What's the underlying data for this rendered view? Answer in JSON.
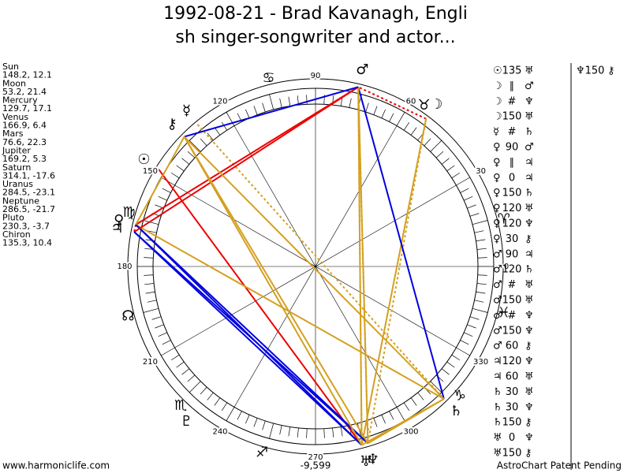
{
  "header": {
    "title_line1": "1992-08-21 - Brad Kavanagh, Engli",
    "title_line2": "sh singer-songwriter and actor..."
  },
  "planets": [
    {
      "name": "Sun",
      "glyph": "☉",
      "position": "148.2, 12.1"
    },
    {
      "name": "Moon",
      "glyph": "☽",
      "position": "53.2, 21.4"
    },
    {
      "name": "Mercury",
      "glyph": "☿",
      "position": "129.7, 17.1"
    },
    {
      "name": "Venus",
      "glyph": "♀",
      "position": "166.9, 6.4"
    },
    {
      "name": "Mars",
      "glyph": "♂",
      "position": "76.6, 22.3"
    },
    {
      "name": "Jupiter",
      "glyph": "♃",
      "position": "169.2, 5.3"
    },
    {
      "name": "Saturn",
      "glyph": "♄",
      "position": "314.1, -17.6"
    },
    {
      "name": "Uranus",
      "glyph": "♅",
      "position": "284.5, -23.1"
    },
    {
      "name": "Neptune",
      "glyph": "♆",
      "position": "286.5, -21.7"
    },
    {
      "name": "Pluto",
      "glyph": "♇",
      "position": "230.3, -3.7"
    },
    {
      "name": "Chiron",
      "glyph": "⚷",
      "position": "135.3, 10.4"
    }
  ],
  "aspects": [
    {
      "from": "☉",
      "aspect": "135",
      "to": "♅"
    },
    {
      "from": "☽",
      "aspect": "∥",
      "to": "♂"
    },
    {
      "from": "☽",
      "aspect": "#",
      "to": "♆"
    },
    {
      "from": "☽",
      "aspect": "150",
      "to": "♅"
    },
    {
      "from": "☿",
      "aspect": "#",
      "to": "♄"
    },
    {
      "from": "♀",
      "aspect": "90",
      "to": "♂"
    },
    {
      "from": "♀",
      "aspect": "∥",
      "to": "♃"
    },
    {
      "from": "♀",
      "aspect": "0",
      "to": "♃"
    },
    {
      "from": "♀",
      "aspect": "150",
      "to": "♄"
    },
    {
      "from": "♀",
      "aspect": "120",
      "to": "♅"
    },
    {
      "from": "♀",
      "aspect": "120",
      "to": "♆"
    },
    {
      "from": "♀",
      "aspect": "30",
      "to": "⚷"
    },
    {
      "from": "♂",
      "aspect": "90",
      "to": "♃"
    },
    {
      "from": "♂",
      "aspect": "120",
      "to": "♄"
    },
    {
      "from": "♂",
      "aspect": "#",
      "to": "♅"
    },
    {
      "from": "♂",
      "aspect": "150",
      "to": "♅"
    },
    {
      "from": "♂",
      "aspect": "#",
      "to": "♆"
    },
    {
      "from": "♂",
      "aspect": "150",
      "to": "♆"
    },
    {
      "from": "♂",
      "aspect": "60",
      "to": "⚷"
    },
    {
      "from": "♃",
      "aspect": "120",
      "to": "♆"
    },
    {
      "from": "♃",
      "aspect": "60",
      "to": "♅"
    },
    {
      "from": "♄",
      "aspect": "30",
      "to": "♅"
    },
    {
      "from": "♄",
      "aspect": "30",
      "to": "♆"
    },
    {
      "from": "♄",
      "aspect": "150",
      "to": "⚷"
    },
    {
      "from": "♅",
      "aspect": "0",
      "to": "♆"
    },
    {
      "from": "♅",
      "aspect": "150",
      "to": "⚷"
    },
    {
      "from": "♆",
      "aspect": "150",
      "to": "⚷"
    }
  ],
  "wheel": {
    "degree_labels": [
      0,
      30,
      60,
      90,
      120,
      150,
      180,
      210,
      240,
      270,
      300,
      330
    ],
    "bottom_label": "-9,599",
    "signs": [
      "♈",
      "♉",
      "♋",
      "♍",
      "☊",
      "♏",
      "♐",
      "♑",
      "♓"
    ]
  },
  "footer": {
    "left": "www.harmoniclife.com",
    "right": "AstroChart Patent Pending"
  }
}
